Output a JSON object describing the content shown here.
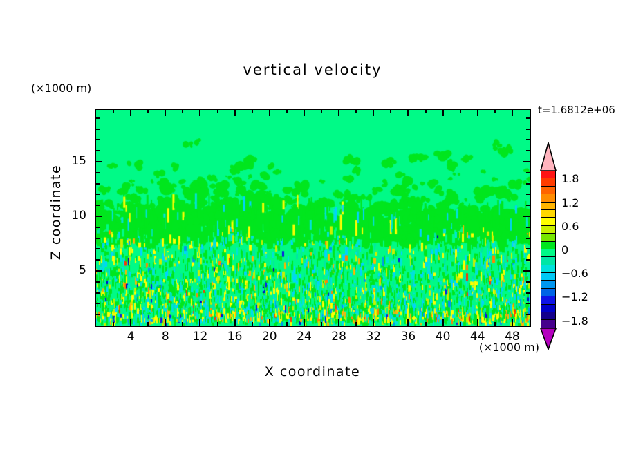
{
  "chart_data": {
    "type": "heatmap",
    "title": "vertical velocity",
    "annotation": "t=1.6812e+06",
    "xlabel": "X coordinate",
    "ylabel": "Z coordinate",
    "x_unit": "(×1000 m)",
    "y_unit": "(×1000 m)",
    "xlim": [
      0,
      50
    ],
    "ylim": [
      0,
      19.75
    ],
    "x_ticks": [
      4,
      8,
      12,
      16,
      20,
      24,
      28,
      32,
      36,
      40,
      44,
      48
    ],
    "y_ticks": [
      5,
      10,
      15
    ],
    "x_minor_tick_step": 2,
    "y_minor_tick_step": 1,
    "grid": false,
    "legend_position": "right-colorbar",
    "colorbar": {
      "levels_top_to_bottom": [
        2.0,
        1.8,
        1.6,
        1.4,
        1.2,
        1.0,
        0.8,
        0.6,
        0.4,
        0.2,
        0.0,
        -0.2,
        -0.4,
        -0.6,
        -0.8,
        -1.0,
        -1.2,
        -1.4,
        -1.6,
        -1.8,
        -2.0
      ],
      "colors_top_to_bottom": [
        "#ff1414",
        "#ff3c00",
        "#ff6400",
        "#ff8c00",
        "#ffb400",
        "#ffd700",
        "#ffff00",
        "#c8f000",
        "#78e600",
        "#00e61e",
        "#00fa87",
        "#00e6a5",
        "#00e1dc",
        "#00c8f5",
        "#0096f0",
        "#0064e6",
        "#0f14e6",
        "#0000c8",
        "#14008c",
        "#46008c"
      ],
      "labels": [
        "1.8",
        "1.2",
        "0.6",
        "0",
        "−0.6",
        "−1.2",
        "−1.8"
      ],
      "over_color": "#ffb4be",
      "under_color": "#b400be"
    },
    "field_description": "Vertical-velocity cross section: nearly uniform near-zero field (spring-green 0…0.2 band) over most of the domain, scattered green 0.2–0.4 updraft patches between z≈8 and z≈17, and a dense turbulent layer below z≈8.5 mixing green, turquoise, cyan, yellow and amber bands with rare orange/red and blue streaks, strongest right at the bottom boundary.",
    "texture": {
      "seed": 7,
      "background": "#00fa87",
      "blob_color": "#00e61e",
      "turbulence_top_z": 8.6,
      "palette": {
        "green": "#00e61e",
        "spring": "#00fa87",
        "aqua": "#00e6a5",
        "turquoise": "#00e1dc",
        "cyan": "#00d2ff",
        "sky": "#0096f0",
        "blue": "#0f14e6",
        "deepblue": "#0000c8",
        "yellow": "#ffff00",
        "ygreen": "#c8f000",
        "amber": "#ffb400",
        "orange": "#ff8200",
        "red": "#ff3200"
      },
      "weights_main": {
        "green": 34,
        "spring": 26,
        "turquoise": 9,
        "cyan": 6,
        "aqua": 7,
        "yellow": 8,
        "ygreen": 4,
        "amber": 1.6,
        "orange": 0.6,
        "red": 0.25,
        "sky": 0.9,
        "blue": 0.5,
        "deepblue": 0.3
      },
      "weights_bottom": {
        "green": 26,
        "spring": 16,
        "turquoise": 9,
        "cyan": 7,
        "aqua": 5,
        "yellow": 16,
        "ygreen": 6,
        "amber": 4.5,
        "orange": 1.8,
        "red": 0.7,
        "sky": 2.2,
        "blue": 1.6,
        "deepblue": 0.8
      }
    }
  }
}
